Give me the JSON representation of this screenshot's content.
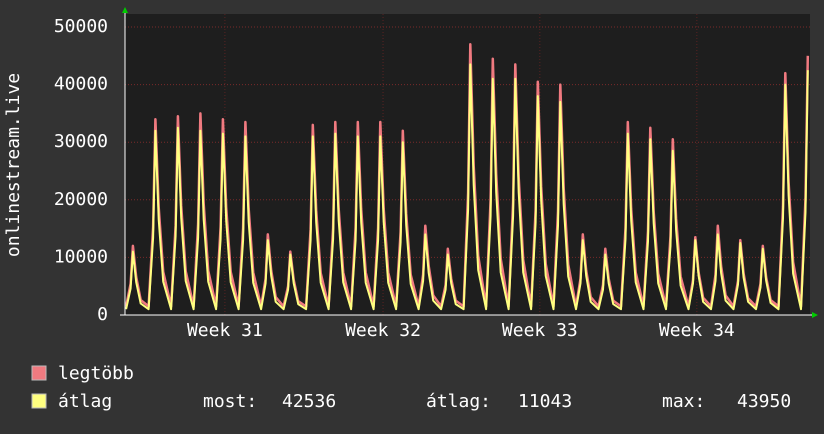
{
  "chart_data": {
    "type": "line",
    "ylabel": "onlinestream.live",
    "xlim": [
      0,
      30.45
    ],
    "ylim": [
      0,
      50000
    ],
    "yticks": [
      0,
      10000,
      20000,
      30000,
      40000,
      50000
    ],
    "xticks": [
      {
        "value": 4.44,
        "label": "Week 31"
      },
      {
        "value": 11.47,
        "label": "Week 32"
      },
      {
        "value": 18.44,
        "label": "Week 33"
      },
      {
        "value": 25.42,
        "label": "Week 34"
      }
    ],
    "grid": true,
    "x": [
      0.05,
      0.25,
      0.35,
      0.5,
      0.7,
      1.05,
      1.25,
      1.35,
      1.5,
      1.7,
      2.05,
      2.25,
      2.35,
      2.5,
      2.7,
      3.05,
      3.25,
      3.35,
      3.5,
      3.7,
      4.05,
      4.25,
      4.35,
      4.5,
      4.7,
      5.05,
      5.25,
      5.35,
      5.5,
      5.7,
      6.05,
      6.25,
      6.35,
      6.5,
      6.7,
      7.05,
      7.25,
      7.35,
      7.5,
      7.7,
      8.05,
      8.25,
      8.35,
      8.5,
      8.7,
      9.05,
      9.25,
      9.35,
      9.5,
      9.7,
      10.05,
      10.25,
      10.35,
      10.5,
      10.7,
      11.05,
      11.25,
      11.35,
      11.5,
      11.7,
      12.05,
      12.25,
      12.35,
      12.5,
      12.7,
      13.05,
      13.25,
      13.35,
      13.5,
      13.7,
      14.05,
      14.25,
      14.35,
      14.5,
      14.7,
      15.05,
      15.25,
      15.35,
      15.5,
      15.7,
      16.05,
      16.25,
      16.35,
      16.5,
      16.7,
      17.05,
      17.25,
      17.35,
      17.5,
      17.7,
      18.05,
      18.25,
      18.35,
      18.5,
      18.7,
      19.05,
      19.25,
      19.35,
      19.5,
      19.7,
      20.05,
      20.25,
      20.35,
      20.5,
      20.7,
      21.05,
      21.25,
      21.35,
      21.5,
      21.7,
      22.05,
      22.25,
      22.35,
      22.5,
      22.7,
      23.05,
      23.25,
      23.35,
      23.5,
      23.7,
      24.05,
      24.25,
      24.35,
      24.5,
      24.7,
      25.05,
      25.25,
      25.35,
      25.5,
      25.7,
      26.05,
      26.25,
      26.35,
      26.5,
      26.7,
      27.05,
      27.25,
      27.35,
      27.5,
      27.7,
      28.05,
      28.25,
      28.35,
      28.5,
      28.7,
      29.05,
      29.25,
      29.35,
      29.5,
      29.7,
      30.05,
      30.25,
      30.35
    ],
    "series": [
      {
        "name": "legtöbb",
        "color": "#f07a80",
        "values": [
          1500,
          5400,
          12000,
          6600,
          2600,
          1500,
          15300,
          34000,
          18700,
          7500,
          1500,
          15500,
          34500,
          19000,
          7600,
          1500,
          15800,
          35000,
          19300,
          7700,
          1500,
          15300,
          34000,
          18700,
          7500,
          1500,
          15100,
          33500,
          18400,
          7400,
          1500,
          6300,
          14000,
          7700,
          3100,
          1500,
          5000,
          11000,
          6100,
          2400,
          1500,
          14900,
          33000,
          18200,
          7300,
          1500,
          15100,
          33500,
          18400,
          7400,
          1500,
          15100,
          33500,
          18400,
          7400,
          1500,
          15100,
          33500,
          18400,
          7400,
          1500,
          14400,
          32000,
          17600,
          7000,
          1500,
          7000,
          15500,
          8500,
          3400,
          1500,
          5200,
          11500,
          6300,
          2500,
          1500,
          21200,
          47000,
          25900,
          10300,
          1500,
          20000,
          44500,
          24500,
          9800,
          1500,
          19600,
          43500,
          23900,
          9600,
          1500,
          18200,
          40500,
          22300,
          8900,
          1500,
          18000,
          40000,
          22000,
          8800,
          1500,
          6300,
          14000,
          7700,
          3100,
          1500,
          5200,
          11500,
          6300,
          2500,
          1500,
          15100,
          33500,
          18400,
          7400,
          1500,
          14600,
          32500,
          17900,
          7200,
          1500,
          13700,
          30500,
          16800,
          6700,
          1500,
          6100,
          13500,
          7400,
          3000,
          1500,
          7000,
          15500,
          8500,
          3400,
          1500,
          5900,
          13000,
          7200,
          2900,
          1500,
          5400,
          12000,
          6600,
          2600,
          1500,
          18900,
          42000,
          23100,
          9200,
          1500,
          20300,
          45000
        ]
      },
      {
        "name": "átlag",
        "color": "#ffff80",
        "values": [
          1000,
          4600,
          11000,
          5700,
          2000,
          1000,
          13400,
          32000,
          16600,
          5800,
          1000,
          13700,
          32500,
          16900,
          5900,
          1000,
          13400,
          32000,
          16600,
          5800,
          1000,
          13200,
          31500,
          16400,
          5700,
          1000,
          13000,
          31000,
          16100,
          5600,
          1000,
          5500,
          13000,
          6800,
          2300,
          1000,
          4400,
          10500,
          5500,
          1900,
          1000,
          13000,
          31000,
          16100,
          5600,
          1000,
          13200,
          31500,
          16400,
          5700,
          1000,
          13000,
          31000,
          16100,
          5600,
          1000,
          13000,
          31000,
          16100,
          5600,
          1000,
          12600,
          30000,
          15600,
          5400,
          1000,
          5900,
          14000,
          7300,
          2500,
          1000,
          4400,
          10500,
          5500,
          1900,
          1000,
          18300,
          43500,
          22600,
          7800,
          1000,
          17200,
          41000,
          21300,
          7400,
          1000,
          17200,
          41000,
          21300,
          7400,
          1000,
          16000,
          38000,
          19800,
          6800,
          1000,
          15500,
          37000,
          19200,
          6700,
          1000,
          5500,
          13000,
          6800,
          2300,
          1000,
          4400,
          10500,
          5500,
          1900,
          1000,
          13200,
          31500,
          16400,
          5700,
          1000,
          12800,
          30500,
          15900,
          5500,
          1000,
          12000,
          28500,
          14800,
          5100,
          1000,
          5500,
          13000,
          6800,
          2300,
          1000,
          5900,
          14000,
          7300,
          2500,
          1000,
          5300,
          12500,
          6500,
          2300,
          1000,
          4800,
          11500,
          6000,
          2100,
          1000,
          16800,
          40000,
          20800,
          7200,
          1000,
          17900,
          42500
        ]
      }
    ],
    "stats": [
      {
        "label": "most:",
        "value": 42536
      },
      {
        "label": "átlag:",
        "value": 11043
      },
      {
        "label": "max:",
        "value": 43950
      }
    ]
  }
}
